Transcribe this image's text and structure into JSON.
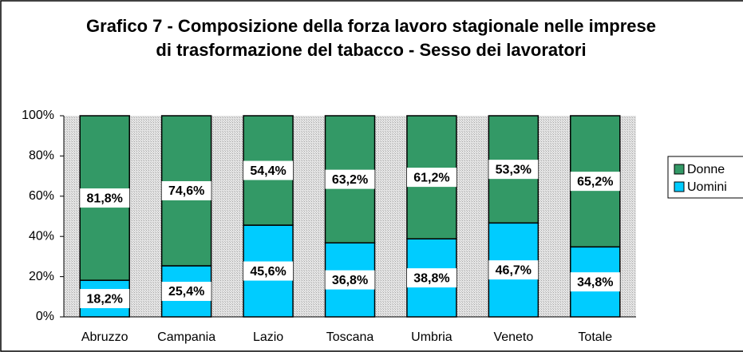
{
  "chart_data": {
    "type": "stacked_bar",
    "title": "Grafico 7 - Composizione della forza lavoro stagionale nelle imprese di trasformazione del tabacco - Sesso dei lavoratori",
    "categories": [
      "Abruzzo",
      "Campania",
      "Lazio",
      "Toscana",
      "Umbria",
      "Veneto",
      "Totale"
    ],
    "series": [
      {
        "name": "Uomini",
        "color": "#00ccff",
        "values": [
          18.2,
          25.4,
          45.6,
          36.8,
          38.8,
          46.7,
          34.8
        ],
        "value_labels": [
          "18,2%",
          "25,4%",
          "45,6%",
          "36,8%",
          "38,8%",
          "46,7%",
          "34,8%"
        ]
      },
      {
        "name": "Donne",
        "color": "#339966",
        "values": [
          81.8,
          74.6,
          54.4,
          63.2,
          61.2,
          53.3,
          65.2
        ],
        "value_labels": [
          "81,8%",
          "74,6%",
          "54,4%",
          "63,2%",
          "61,2%",
          "53,3%",
          "65,2%"
        ]
      }
    ],
    "ylim": [
      0,
      100
    ],
    "yticks": [
      {
        "value": 0,
        "label": "0%"
      },
      {
        "value": 20,
        "label": "20%"
      },
      {
        "value": 40,
        "label": "40%"
      },
      {
        "value": 60,
        "label": "60%"
      },
      {
        "value": 80,
        "label": "80%"
      },
      {
        "value": 100,
        "label": "100%"
      }
    ],
    "legend": "right"
  }
}
